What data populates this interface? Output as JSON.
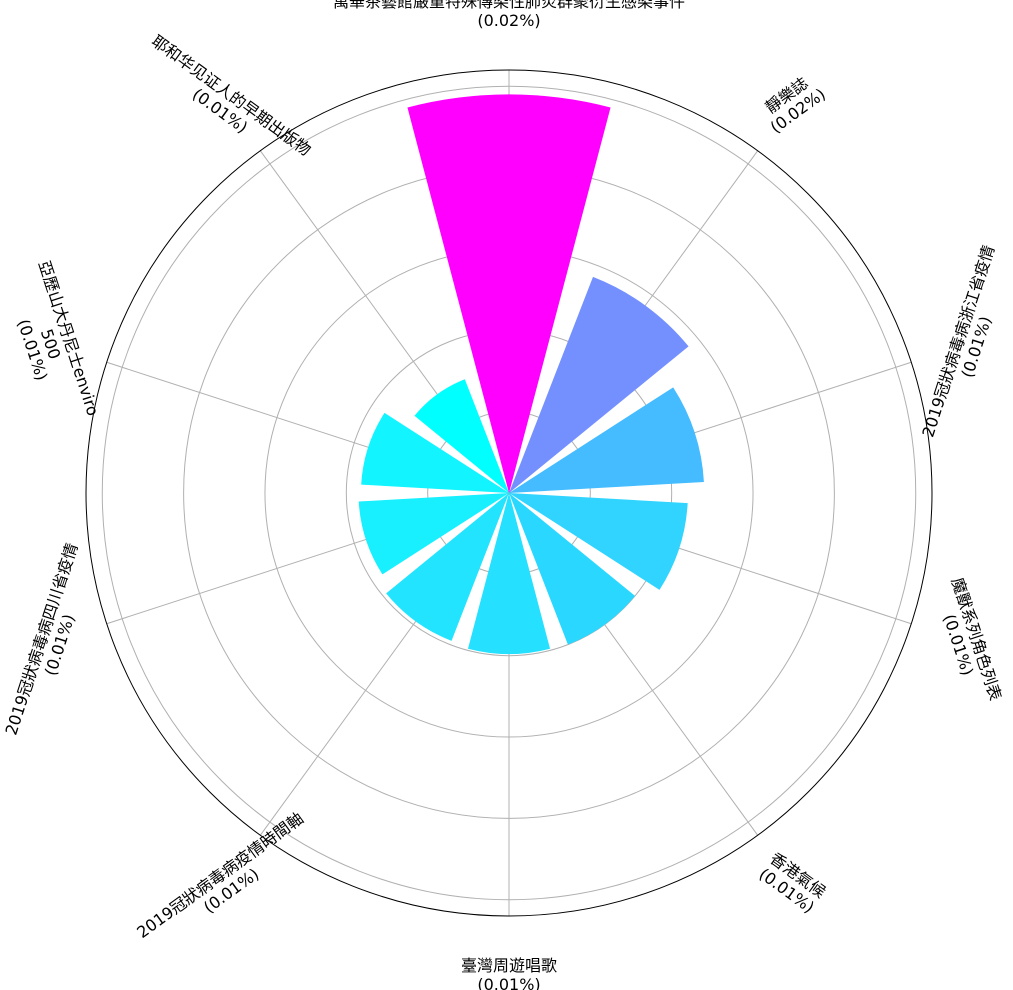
{
  "chart_data": {
    "type": "bar",
    "subtype": "polar",
    "title": "",
    "categories": [
      "萬華茶藝館嚴重特殊傳染性肺炎群聚衍生感染事件",
      "靜樂誌",
      "2019冠狀病毒病浙江省疫情",
      "魔獸系列角色列表",
      "香港氣候",
      "臺灣周遊唱歌",
      "2019冠狀病毒病疫情時間軸",
      "2019冠狀病毒病四川省疫情",
      "亞歷山大丹尼士enviro 500",
      "耶和华见证人的早期出版物"
    ],
    "label_lines": [
      [
        "萬華茶藝館嚴重特殊傳染性肺炎群聚衍生感染事件",
        "(0.02%)"
      ],
      [
        "靜樂誌",
        "(0.02%)"
      ],
      [
        "2019冠狀病毒病浙江省疫情",
        "(0.01%)"
      ],
      [
        "魔獸系列角色列表",
        "(0.01%)"
      ],
      [
        "香港氣候",
        "(0.01%)"
      ],
      [
        "臺灣周遊唱歌",
        "(0.01%)"
      ],
      [
        "2019冠狀病毒病疫情時間軸",
        "(0.01%)"
      ],
      [
        "2019冠狀病毒病四川省疫情",
        "(0.01%)"
      ],
      [
        "亞歷山大丹尼士enviro",
        "500",
        "(0.01%)"
      ],
      [
        "耶和华见证人的早期出版物",
        "(0.01%)"
      ]
    ],
    "percent_labels": [
      "0.02%",
      "0.02%",
      "0.01%",
      "0.01%",
      "0.01%",
      "0.01%",
      "0.01%",
      "0.01%",
      "0.01%",
      "0.01%"
    ],
    "values": [
      4.9,
      2.85,
      2.4,
      2.2,
      2.0,
      1.98,
      1.95,
      1.85,
      1.82,
      1.5
    ],
    "colors": [
      "#ff00ff",
      "#7490ff",
      "#44bcff",
      "#30d4ff",
      "#2ad8ff",
      "#26e0ff",
      "#23e4ff",
      "#18f0ff",
      "#12f4ff",
      "#00ffff"
    ],
    "start": "top",
    "direction": "clockwise",
    "rmax": 5.2,
    "rgrid": [
      1,
      2,
      3,
      4,
      5
    ],
    "grid": true,
    "radial_tick_labels": false,
    "legend": false
  }
}
